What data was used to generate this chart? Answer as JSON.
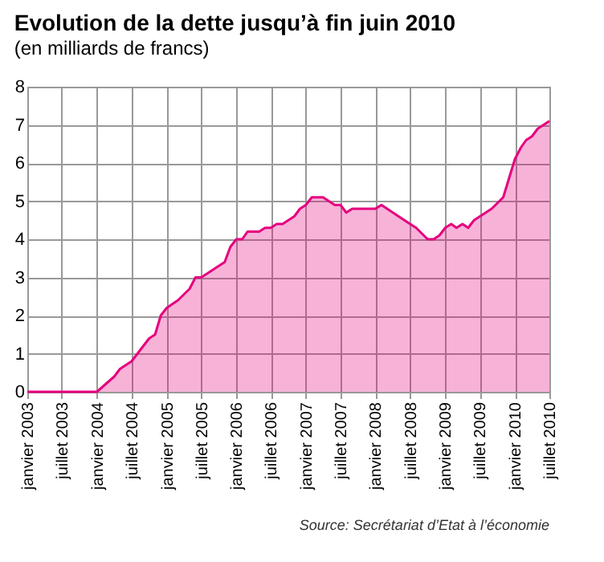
{
  "chart_data": {
    "type": "area",
    "title": "Evolution de la dette jusqu’à fin juin 2010",
    "subtitle": "(en milliards de francs)",
    "x": [
      "2003-01",
      "2004-01",
      "2004-04",
      "2004-05",
      "2004-07",
      "2004-10",
      "2004-11",
      "2004-12",
      "2005-01",
      "2005-03",
      "2005-05",
      "2005-06",
      "2005-07",
      "2005-08",
      "2005-10",
      "2005-11",
      "2005-12",
      "2006-01",
      "2006-02",
      "2006-03",
      "2006-05",
      "2006-06",
      "2006-07",
      "2006-08",
      "2006-09",
      "2006-11",
      "2006-12",
      "2007-01",
      "2007-02",
      "2007-04",
      "2007-06",
      "2007-07",
      "2007-08",
      "2007-09",
      "2008-01",
      "2008-02",
      "2008-05",
      "2008-07",
      "2008-08",
      "2008-10",
      "2008-11",
      "2008-12",
      "2009-01",
      "2009-02",
      "2009-03",
      "2009-04",
      "2009-05",
      "2009-06",
      "2009-09",
      "2009-11",
      "2010-01",
      "2010-02",
      "2010-03",
      "2010-04",
      "2010-05",
      "2010-07"
    ],
    "series": [
      {
        "color": "#e5007e",
        "values": [
          0,
          0,
          0.4,
          0.6,
          0.8,
          1.4,
          1.5,
          2.0,
          2.2,
          2.4,
          2.7,
          3.0,
          3.0,
          3.1,
          3.3,
          3.4,
          3.8,
          4.0,
          4.0,
          4.2,
          4.2,
          4.3,
          4.3,
          4.4,
          4.4,
          4.6,
          4.8,
          4.9,
          5.1,
          5.1,
          4.9,
          4.9,
          4.7,
          4.8,
          4.8,
          4.9,
          4.6,
          4.4,
          4.3,
          4.0,
          4.0,
          4.1,
          4.3,
          4.4,
          4.3,
          4.4,
          4.3,
          4.5,
          4.8,
          5.1,
          6.1,
          6.4,
          6.6,
          6.7,
          6.9,
          7.1
        ]
      }
    ],
    "xlim": [
      "2003-01",
      "2010-07"
    ],
    "xticks": [
      {
        "value": "2003-01",
        "label": "janvier 2003"
      },
      {
        "value": "2003-07",
        "label": "juillet 2003"
      },
      {
        "value": "2004-01",
        "label": "janvier 2004"
      },
      {
        "value": "2004-07",
        "label": "juillet 2004"
      },
      {
        "value": "2005-01",
        "label": "janvier 2005"
      },
      {
        "value": "2005-07",
        "label": "juillet 2005"
      },
      {
        "value": "2006-01",
        "label": "janvier 2006"
      },
      {
        "value": "2006-07",
        "label": "juillet 2006"
      },
      {
        "value": "2007-01",
        "label": "janvier 2007"
      },
      {
        "value": "2007-07",
        "label": "juillet 2007"
      },
      {
        "value": "2008-01",
        "label": "janvier 2008"
      },
      {
        "value": "2008-07",
        "label": "juillet 2008"
      },
      {
        "value": "2009-01",
        "label": "janvier 2009"
      },
      {
        "value": "2009-07",
        "label": "juillet 2009"
      },
      {
        "value": "2010-01",
        "label": "janvier 2010"
      },
      {
        "value": "2010-07",
        "label": "juillet 2010"
      }
    ],
    "ylim": [
      0,
      8
    ],
    "yticks": [
      0,
      1,
      2,
      3,
      4,
      5,
      6,
      7,
      8
    ],
    "grid": true,
    "marker": "none",
    "annotations": [
      "Source: Secrétariat d’Etat à l’économie"
    ]
  }
}
